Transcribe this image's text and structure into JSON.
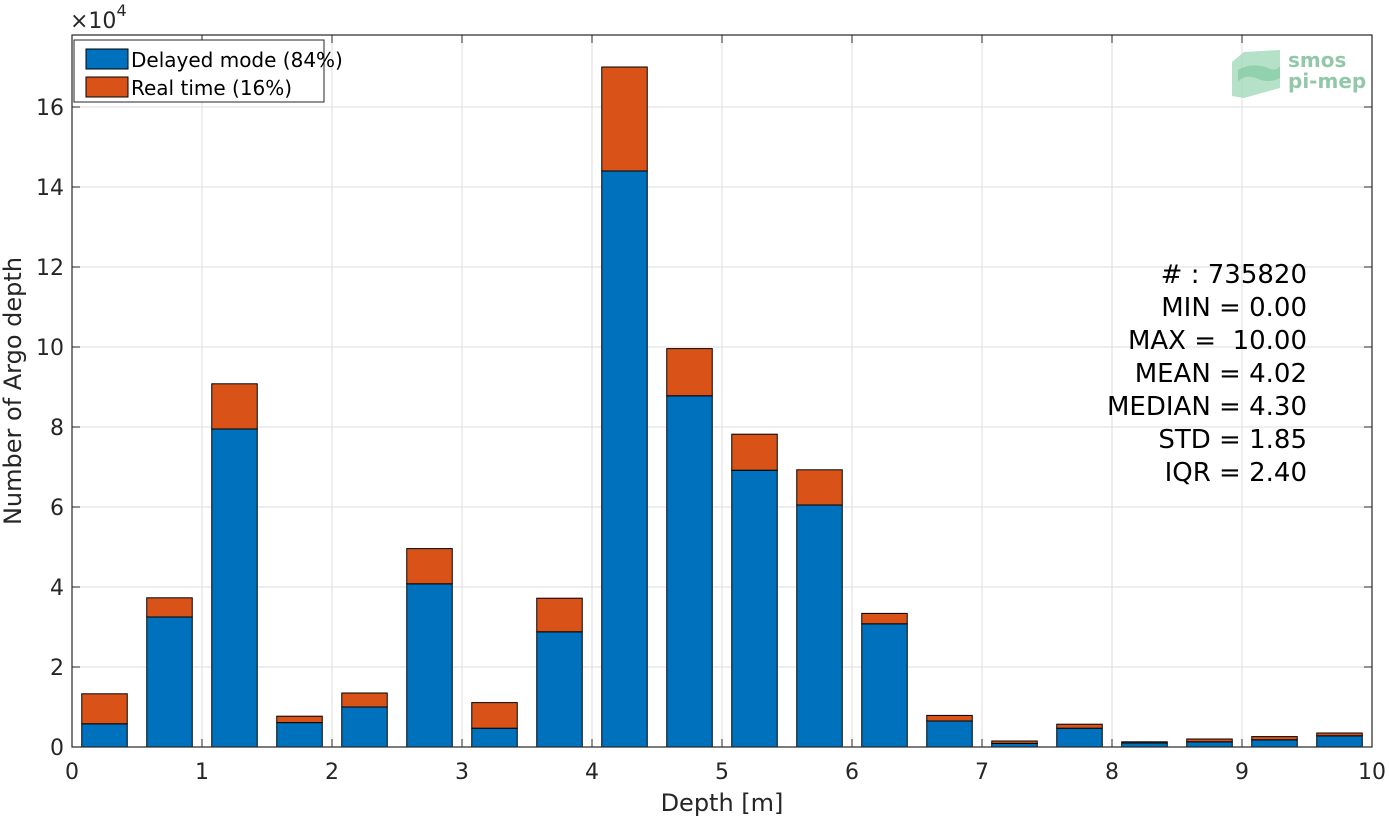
{
  "chart_data": {
    "type": "bar",
    "stacked": true,
    "x": [
      0.25,
      0.75,
      1.25,
      1.75,
      2.25,
      2.75,
      3.25,
      3.75,
      4.25,
      4.75,
      5.25,
      5.75,
      6.25,
      6.75,
      7.25,
      7.75,
      8.25,
      8.75,
      9.25,
      9.75
    ],
    "series": [
      {
        "name": "Delayed mode (84%)",
        "color": "#0072bd",
        "values": [
          5800,
          32500,
          79500,
          6100,
          10000,
          40800,
          4700,
          28800,
          144000,
          87800,
          69200,
          60500,
          30800,
          6500,
          900,
          4700,
          1000,
          1300,
          1800,
          2800
        ]
      },
      {
        "name": "Real time (16%)",
        "color": "#d95319",
        "values": [
          7500,
          4800,
          11300,
          1600,
          3500,
          8800,
          6400,
          8400,
          26000,
          11800,
          9000,
          8800,
          2600,
          1400,
          600,
          1000,
          300,
          700,
          800,
          700
        ]
      }
    ],
    "xlabel": "Depth [m]",
    "ylabel": "Number of Argo depth",
    "y_exponent_label": "×10",
    "y_exponent_power": "4",
    "xlim": [
      0,
      10
    ],
    "ylim": [
      0,
      178000
    ],
    "xticks": [
      0,
      1,
      2,
      3,
      4,
      5,
      6,
      7,
      8,
      9,
      10
    ],
    "xtick_labels": [
      "0",
      "1",
      "2",
      "3",
      "4",
      "5",
      "6",
      "7",
      "8",
      "9",
      "10"
    ],
    "yticks": [
      0,
      20000,
      40000,
      60000,
      80000,
      100000,
      120000,
      140000,
      160000
    ],
    "ytick_labels": [
      "0",
      "2",
      "4",
      "6",
      "8",
      "10",
      "12",
      "14",
      "16"
    ],
    "grid": true,
    "legend_position": "top-left",
    "stats": [
      "# : 735820",
      "MIN = 0.00",
      "MAX =  10.00",
      "MEAN = 4.02",
      "MEDIAN = 4.30",
      "STD = 1.85",
      "IQR = 2.40"
    ]
  },
  "logo": {
    "line1": "smos",
    "line2": "pi-mep"
  }
}
